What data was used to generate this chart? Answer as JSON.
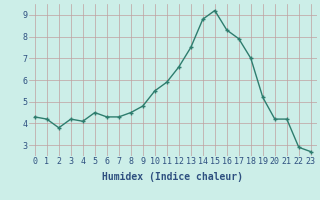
{
  "x": [
    0,
    1,
    2,
    3,
    4,
    5,
    6,
    7,
    8,
    9,
    10,
    11,
    12,
    13,
    14,
    15,
    16,
    17,
    18,
    19,
    20,
    21,
    22,
    23
  ],
  "y": [
    4.3,
    4.2,
    3.8,
    4.2,
    4.1,
    4.5,
    4.3,
    4.3,
    4.5,
    4.8,
    5.5,
    5.9,
    6.6,
    7.5,
    8.8,
    9.2,
    8.3,
    7.9,
    7.0,
    5.2,
    4.2,
    4.2,
    2.9,
    2.7
  ],
  "xlabel": "Humidex (Indice chaleur)",
  "ylim": [
    2.5,
    9.5
  ],
  "xlim": [
    -0.5,
    23.5
  ],
  "yticks": [
    3,
    4,
    5,
    6,
    7,
    8,
    9
  ],
  "xticks": [
    0,
    1,
    2,
    3,
    4,
    5,
    6,
    7,
    8,
    9,
    10,
    11,
    12,
    13,
    14,
    15,
    16,
    17,
    18,
    19,
    20,
    21,
    22,
    23
  ],
  "line_color": "#2e7d6e",
  "marker": "+",
  "bg_color": "#cceee8",
  "grid_color": "#c0a0a0",
  "label_fontsize": 7,
  "tick_fontsize": 6,
  "xlabel_color": "#2e5080",
  "tick_color": "#2e5080"
}
